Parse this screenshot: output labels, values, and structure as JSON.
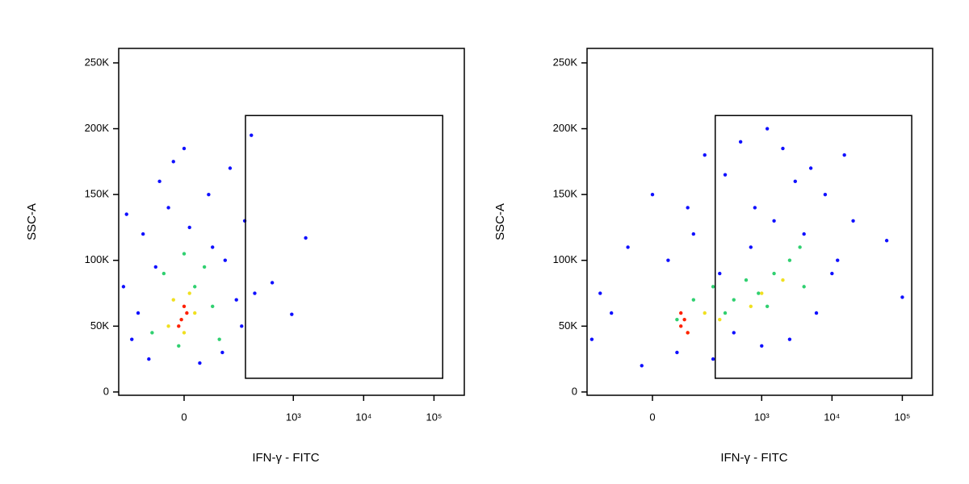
{
  "chart_data": [
    {
      "type": "scatter",
      "xlabel": "IFN-γ - FITC",
      "ylabel": "SSC-A",
      "xscale": "arcsinh",
      "arcsinh_cofactor": 56,
      "xlim": [
        -235,
        270000
      ],
      "ylim": [
        -2500,
        261000
      ],
      "xticks": [
        0,
        {
          "value": 1000,
          "label": "10³"
        },
        {
          "value": 10000,
          "label": "10⁴"
        },
        {
          "value": 100000,
          "label": "10⁵"
        }
      ],
      "yticks": [
        {
          "value": 0,
          "label": "0"
        },
        {
          "value": 50000,
          "label": "50K"
        },
        {
          "value": 100000,
          "label": "100K"
        },
        {
          "value": 150000,
          "label": "150K"
        },
        {
          "value": 200000,
          "label": "200K"
        },
        {
          "value": 250000,
          "label": "250K"
        }
      ],
      "gate": {
        "x": [
          205,
          133000
        ],
        "y": [
          10400,
          210000
        ]
      },
      "series": [
        {
          "color": "#1010ff",
          "x": [
            -150,
            -100,
            -50,
            0,
            50,
            100,
            150,
            -120,
            200,
            -80,
            30,
            90,
            -200,
            120,
            -30,
            60,
            180,
            -60,
            250,
            -180,
            1500,
            500,
            950,
            280,
            10,
            -20
          ],
          "y": [
            40000,
            120000,
            160000,
            185000,
            150000,
            100000,
            70000,
            60000,
            130000,
            25000,
            22000,
            30000,
            80000,
            170000,
            140000,
            110000,
            50000,
            95000,
            195000,
            135000,
            117000,
            83000,
            59000,
            75000,
            125000,
            175000
          ]
        },
        {
          "color": "#30d070",
          "x": [
            -40,
            20,
            60,
            -70,
            80,
            0,
            -10,
            40
          ],
          "y": [
            90000,
            80000,
            65000,
            45000,
            40000,
            105000,
            35000,
            95000
          ]
        },
        {
          "color": "#f0e020",
          "x": [
            -20,
            20,
            -30,
            10,
            0
          ],
          "y": [
            70000,
            60000,
            50000,
            75000,
            45000
          ]
        },
        {
          "color": "#ff2000",
          "x": [
            -5,
            5,
            -10,
            0
          ],
          "y": [
            55000,
            60000,
            50000,
            65000
          ]
        }
      ]
    },
    {
      "type": "scatter",
      "xlabel": "IFN-γ - FITC",
      "ylabel": "SSC-A",
      "xscale": "arcsinh",
      "arcsinh_cofactor": 56,
      "xlim": [
        -235,
        270000
      ],
      "ylim": [
        -2500,
        261000
      ],
      "xticks": [
        0,
        {
          "value": 1000,
          "label": "10³"
        },
        {
          "value": 10000,
          "label": "10⁴"
        },
        {
          "value": 100000,
          "label": "10⁵"
        }
      ],
      "yticks": [
        {
          "value": 0,
          "label": "0"
        },
        {
          "value": 50000,
          "label": "50K"
        },
        {
          "value": 100000,
          "label": "100K"
        },
        {
          "value": 150000,
          "label": "150K"
        },
        {
          "value": 200000,
          "label": "200K"
        },
        {
          "value": 250000,
          "label": "250K"
        }
      ],
      "gate": {
        "x": [
          215,
          136000
        ],
        "y": [
          10400,
          210000
        ]
      },
      "series": [
        {
          "color": "#1010ff",
          "x": [
            -100,
            -200,
            0,
            30,
            50,
            100,
            150,
            300,
            500,
            800,
            1200,
            2000,
            3000,
            5000,
            8000,
            15000,
            20000,
            60000,
            400,
            1000,
            2500,
            6000,
            10000,
            200,
            -50,
            80,
            700,
            1500,
            4000,
            12000,
            -150,
            250,
            -20,
            100000
          ],
          "y": [
            60000,
            40000,
            150000,
            100000,
            30000,
            120000,
            180000,
            165000,
            190000,
            140000,
            200000,
            185000,
            160000,
            170000,
            150000,
            180000,
            130000,
            115000,
            45000,
            35000,
            40000,
            60000,
            90000,
            25000,
            110000,
            140000,
            110000,
            130000,
            120000,
            100000,
            75000,
            90000,
            20000,
            72000
          ]
        },
        {
          "color": "#30d070",
          "x": [
            100,
            200,
            400,
            600,
            900,
            1500,
            2500,
            4000,
            300,
            1200,
            50,
            3500
          ],
          "y": [
            70000,
            80000,
            70000,
            85000,
            75000,
            90000,
            100000,
            80000,
            60000,
            65000,
            55000,
            110000
          ]
        },
        {
          "color": "#f0e020",
          "x": [
            150,
            250,
            700,
            1000,
            80,
            2000
          ],
          "y": [
            60000,
            55000,
            65000,
            75000,
            45000,
            85000
          ]
        },
        {
          "color": "#ff2000",
          "x": [
            60,
            70,
            80,
            60
          ],
          "y": [
            50000,
            55000,
            45000,
            60000
          ]
        }
      ]
    }
  ]
}
